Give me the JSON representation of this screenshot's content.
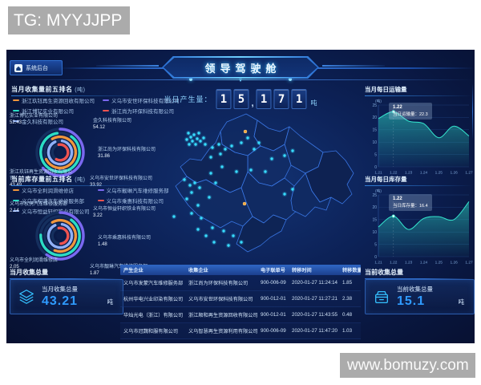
{
  "watermarks": {
    "top_left": "TG: MYYJJPP",
    "bottom_right": "www.bomuzy.com"
  },
  "header": {
    "title": "领导驾驶舱",
    "backend_button": "系统后台",
    "daily_output_label": "当日产生量：",
    "daily_output_value": "15,171",
    "daily_output_unit": "吨"
  },
  "colors": {
    "accent_teal": "#35e6cf",
    "accent_blue": "#2f9bff",
    "map_dot": "#38dcff",
    "alert_dot": "#f2a63c"
  },
  "left": {
    "panel1": {
      "title": "当月收集量前五排名",
      "title_unit": "(吨)",
      "callouts": [
        {
          "name": "浙江博钇实业有限公司",
          "value": "52.43"
        },
        {
          "name": "金久科技有限公司",
          "value": "54.12"
        },
        {
          "name": "浙江尚为环保科技有限公司",
          "value": "31.86"
        },
        {
          "name": "义乌市安世环保科技有限公司",
          "value": "33.92"
        },
        {
          "name": "浙江玖钰再生资源回收有限公司",
          "value": "43.49"
        }
      ]
    },
    "panel2": {
      "title": "当前库存量前五排名",
      "title_unit": "(吨)",
      "callouts": [
        {
          "name": "义乌市权骋汽车维修服务部",
          "value": "2.14"
        },
        {
          "name": "义乌市恒益轩织铁业有限公司",
          "value": "3.22"
        },
        {
          "name": "义乌市乘惠科技有限公司",
          "value": "1.48"
        },
        {
          "name": "义乌市靓琳汽车维修服务部",
          "value": "1.87"
        },
        {
          "name": "义乌市全利润滑维修店",
          "value": "2.05"
        }
      ]
    },
    "total_month": {
      "header": "当月收集总量",
      "label": "当月收集总量",
      "value": "43.21",
      "unit": "吨"
    }
  },
  "right": {
    "total_current": {
      "header": "当前收集总量",
      "label": "当前收集总量",
      "value": "15.1",
      "unit": "吨"
    }
  },
  "table": {
    "columns": [
      "产生企业",
      "收集企业",
      "电子联单号",
      "转移时间",
      "转移数量（吨）"
    ],
    "rows": [
      [
        "义乌市发蒙汽车维修服务部",
        "浙江尚为环保科技有限公司",
        "900-006-09",
        "2020-01-27 11:24:14",
        "1.85"
      ],
      [
        "杭州华电兴业印染有限公司",
        "义乌市安世环保科技有限公司",
        "900-012-01",
        "2020-01-27 11:27:21",
        "2.38"
      ],
      [
        "华灿光电（浙江）有限公司",
        "浙江顺和再生资源回收有限公司",
        "900-012-01",
        "2020-01-27 11:43:55",
        "0.48"
      ],
      [
        "义乌市冠魏和服有限公司",
        "义乌智慧再生资源利用有限公司",
        "900-006-09",
        "2020-01-27 11:47:20",
        "1.03"
      ]
    ]
  },
  "map": {
    "points": [
      [
        30,
        30
      ],
      [
        33,
        35
      ],
      [
        37,
        32
      ],
      [
        41,
        37
      ],
      [
        35,
        40
      ],
      [
        31,
        44
      ],
      [
        39,
        44
      ],
      [
        45,
        40
      ],
      [
        49,
        36
      ],
      [
        43,
        30
      ],
      [
        28,
        38
      ],
      [
        51,
        44
      ],
      [
        60,
        48
      ],
      [
        68,
        44
      ],
      [
        76,
        50
      ],
      [
        84,
        46
      ],
      [
        70,
        56
      ],
      [
        58,
        60
      ],
      [
        96,
        42
      ],
      [
        104,
        36
      ],
      [
        118,
        42
      ],
      [
        112,
        50
      ],
      [
        134,
        62
      ],
      [
        150,
        58
      ],
      [
        160,
        52
      ],
      [
        72,
        72
      ],
      [
        58,
        80
      ],
      [
        90,
        78
      ],
      [
        126,
        78
      ],
      [
        108,
        76
      ],
      [
        25,
        88
      ],
      [
        32,
        95
      ],
      [
        38,
        92
      ],
      [
        44,
        98
      ],
      [
        34,
        104
      ],
      [
        28,
        112
      ],
      [
        42,
        120
      ],
      [
        34,
        130
      ],
      [
        46,
        136
      ],
      [
        12,
        134
      ],
      [
        56,
        110
      ],
      [
        64,
        92
      ],
      [
        42,
        150
      ],
      [
        52,
        158
      ],
      [
        60,
        148
      ],
      [
        74,
        152
      ],
      [
        86,
        158
      ],
      [
        96,
        166
      ],
      [
        62,
        166
      ],
      [
        80,
        170
      ],
      [
        150,
        106
      ],
      [
        160,
        100
      ]
    ],
    "alert_points": [
      [
        101,
        28
      ],
      [
        100,
        118
      ]
    ]
  },
  "chart_data": [
    {
      "type": "pie",
      "title": "当月收集量前五排名",
      "unit": "吨",
      "categories": [
        "浙江玖钰再生资源回收有限公司",
        "浙江博钇实业有限公司",
        "金久科技有限公司",
        "义乌市安世环保科技有限公司",
        "浙江尚为环保科技有限公司"
      ],
      "values": [
        43.49,
        52.43,
        54.12,
        33.92,
        31.86
      ],
      "colors": [
        "#f0963c",
        "#2bdcc3",
        "#8fb0f7",
        "#7a68f0",
        "#ef5350"
      ],
      "legend_position": "top"
    },
    {
      "type": "pie",
      "title": "当前库存量前五排名",
      "unit": "吨",
      "categories": [
        "义乌市全利润滑维修店",
        "义乌市权骋汽车维修服务部",
        "义乌市恒益轩织铁业有限公司",
        "义乌市靓琳汽车维修服务部",
        "义乌市乘惠科技有限公司"
      ],
      "values": [
        2.05,
        2.14,
        3.22,
        1.87,
        1.48
      ],
      "colors": [
        "#f0963c",
        "#2bdcc3",
        "#8fb0f7",
        "#7a68f0",
        "#ef5350"
      ],
      "legend_position": "top"
    },
    {
      "type": "area",
      "title": "当月每日运输量",
      "ylabel": "(吨)",
      "ylim": [
        0,
        25
      ],
      "x": [
        "1.21",
        "1.22",
        "1.23",
        "1.24",
        "1.25",
        "1.26",
        "1.27"
      ],
      "values": [
        19.5,
        22.3,
        18.5,
        17.5,
        11.8,
        16.5,
        12.5
      ],
      "grid": true,
      "tooltip": {
        "date": "1.22",
        "text": "当日运输量：22.3"
      }
    },
    {
      "type": "area",
      "title": "当月每日库存量",
      "ylabel": "(吨)",
      "ylim": [
        0,
        25
      ],
      "x": [
        "1.21",
        "1.22",
        "1.23",
        "1.24",
        "1.25",
        "1.26",
        "1.27"
      ],
      "values": [
        12,
        16.4,
        11,
        15.5,
        16.2,
        15,
        22.3
      ],
      "grid": true,
      "tooltip": {
        "date": "1.22",
        "text": "当日库存量：16.4"
      }
    }
  ]
}
